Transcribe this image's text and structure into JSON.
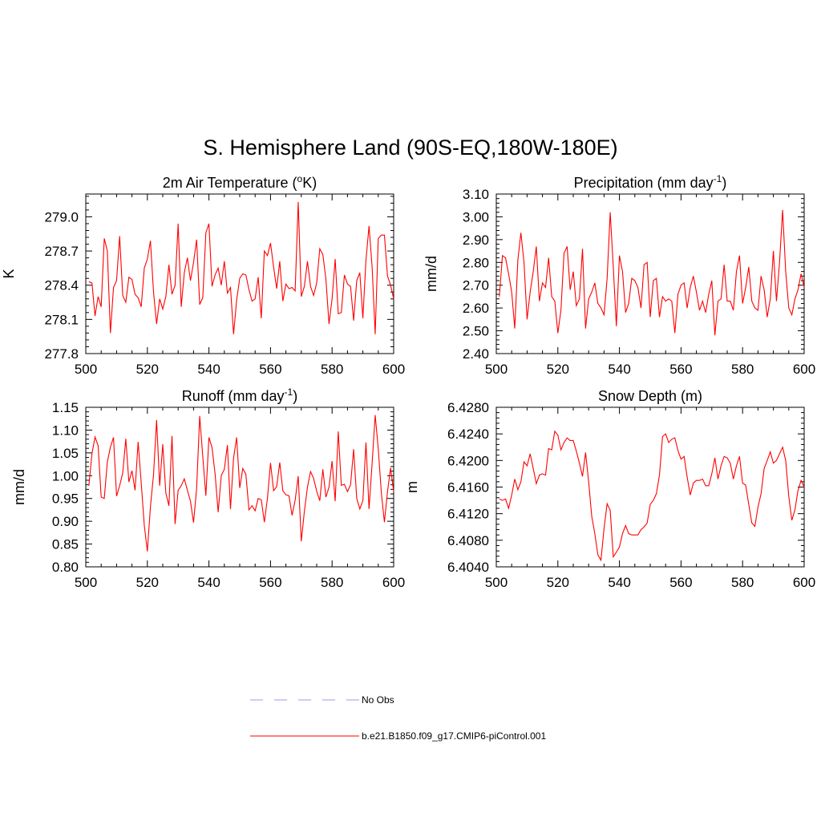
{
  "figure": {
    "title": "S. Hemisphere Land (90S-EQ,180W-180E)"
  },
  "chart_data": [
    {
      "type": "line",
      "title": "2m Air Temperature (",
      "title_sup": "o",
      "title_after": "K)",
      "xlabel": "",
      "ylabel": "K",
      "xlim": [
        500,
        600
      ],
      "ylim": [
        277.8,
        279.2
      ],
      "xticks": [
        "500",
        "520",
        "540",
        "560",
        "580",
        "600"
      ],
      "yticks": [
        "277.8",
        "278.1",
        "278.4",
        "278.7",
        "279.0"
      ],
      "ytick_values": [
        277.8,
        278.1,
        278.4,
        278.7,
        279.0
      ],
      "series": [
        {
          "name": "b.e21.B1850.f09_g17.CMIP6-piControl.001",
          "color": "#ff0000",
          "x_start": 501,
          "values": [
            278.43,
            278.42,
            278.13,
            278.3,
            278.21,
            278.81,
            278.7,
            277.98,
            278.38,
            278.44,
            278.83,
            278.31,
            278.25,
            278.47,
            278.45,
            278.32,
            278.29,
            278.21,
            278.55,
            278.63,
            278.79,
            278.34,
            278.06,
            278.28,
            278.19,
            278.3,
            278.58,
            278.32,
            278.4,
            278.94,
            278.21,
            278.51,
            278.64,
            278.44,
            278.6,
            278.8,
            278.23,
            278.29,
            278.86,
            278.94,
            278.39,
            278.49,
            278.55,
            278.4,
            278.61,
            278.33,
            278.38,
            277.97,
            278.27,
            278.46,
            278.5,
            278.49,
            278.36,
            278.26,
            278.28,
            278.47,
            278.11,
            278.7,
            278.66,
            278.77,
            278.56,
            278.37,
            278.61,
            278.26,
            278.41,
            278.37,
            278.38,
            278.35,
            279.13,
            278.3,
            278.39,
            278.61,
            278.39,
            278.31,
            278.42,
            278.72,
            278.67,
            278.45,
            278.06,
            278.28,
            278.63,
            278.15,
            278.16,
            278.49,
            278.41,
            278.39,
            278.09,
            278.44,
            278.51,
            278.11,
            278.62,
            278.92,
            278.56,
            277.97,
            278.81,
            278.84,
            278.84,
            278.48,
            278.4,
            278.28
          ]
        }
      ]
    },
    {
      "type": "line",
      "title": "Precipitation (mm day",
      "title_sup": "-1",
      "title_after": ")",
      "xlabel": "",
      "ylabel": "mm/d",
      "xlim": [
        500,
        600
      ],
      "ylim": [
        2.4,
        3.1
      ],
      "xticks": [
        "500",
        "520",
        "540",
        "560",
        "580",
        "600"
      ],
      "yticks": [
        "2.40",
        "2.50",
        "2.60",
        "2.70",
        "2.80",
        "2.90",
        "3.00",
        "3.10"
      ],
      "ytick_values": [
        2.4,
        2.5,
        2.6,
        2.7,
        2.8,
        2.9,
        3.0,
        3.1
      ],
      "series": [
        {
          "name": "b.e21.B1850.f09_g17.CMIP6-piControl.001",
          "color": "#ff0000",
          "x_start": 501,
          "values": [
            2.65,
            2.83,
            2.82,
            2.75,
            2.67,
            2.51,
            2.81,
            2.93,
            2.8,
            2.55,
            2.67,
            2.76,
            2.87,
            2.63,
            2.71,
            2.69,
            2.82,
            2.65,
            2.63,
            2.49,
            2.59,
            2.84,
            2.87,
            2.68,
            2.76,
            2.61,
            2.64,
            2.86,
            2.51,
            2.64,
            2.67,
            2.71,
            2.62,
            2.6,
            2.57,
            2.73,
            3.02,
            2.78,
            2.52,
            2.83,
            2.76,
            2.58,
            2.62,
            2.73,
            2.72,
            2.69,
            2.6,
            2.79,
            2.8,
            2.56,
            2.72,
            2.73,
            2.56,
            2.65,
            2.63,
            2.64,
            2.63,
            2.49,
            2.66,
            2.7,
            2.71,
            2.6,
            2.69,
            2.74,
            2.67,
            2.59,
            2.63,
            2.58,
            2.66,
            2.72,
            2.48,
            2.63,
            2.64,
            2.79,
            2.63,
            2.63,
            2.59,
            2.76,
            2.83,
            2.62,
            2.69,
            2.78,
            2.63,
            2.6,
            2.59,
            2.74,
            2.68,
            2.56,
            2.64,
            2.85,
            2.63,
            2.8,
            3.03,
            2.76,
            2.6,
            2.57,
            2.64,
            2.68,
            2.75,
            2.69
          ]
        }
      ]
    },
    {
      "type": "line",
      "title": "Runoff (mm day",
      "title_sup": "-1",
      "title_after": ")",
      "xlabel": "",
      "ylabel": "mm/d",
      "xlim": [
        500,
        600
      ],
      "ylim": [
        0.8,
        1.15
      ],
      "xticks": [
        "500",
        "520",
        "540",
        "560",
        "580",
        "600"
      ],
      "yticks": [
        "0.80",
        "0.85",
        "0.90",
        "0.95",
        "1.00",
        "1.05",
        "1.10",
        "1.15"
      ],
      "ytick_values": [
        0.8,
        0.85,
        0.9,
        0.95,
        1.0,
        1.05,
        1.1,
        1.15
      ],
      "series": [
        {
          "name": "b.e21.B1850.f09_g17.CMIP6-piControl.001",
          "color": "#ff0000",
          "x_start": 501,
          "values": [
            0.978,
            1.048,
            1.085,
            1.066,
            0.953,
            0.95,
            1.03,
            1.063,
            1.084,
            0.955,
            0.978,
            1.006,
            1.081,
            0.986,
            1.011,
            0.968,
            1.074,
            0.985,
            0.891,
            0.834,
            0.932,
            1.002,
            1.122,
            0.978,
            1.069,
            0.962,
            0.934,
            1.087,
            0.894,
            0.968,
            0.978,
            0.993,
            0.968,
            0.944,
            0.897,
            0.972,
            1.131,
            1.042,
            0.956,
            1.084,
            1.062,
            1.004,
            0.92,
            1.0,
            1.014,
            1.067,
            0.927,
            1.039,
            1.084,
            0.973,
            1.016,
            1.003,
            0.925,
            0.934,
            0.923,
            0.95,
            0.947,
            0.898,
            0.95,
            1.028,
            0.967,
            0.976,
            1.029,
            0.967,
            0.958,
            0.956,
            0.913,
            0.946,
            0.999,
            0.856,
            0.922,
            0.975,
            1.009,
            0.994,
            0.966,
            0.945,
            1.014,
            0.953,
            0.975,
            1.032,
            0.944,
            1.097,
            0.979,
            0.981,
            0.965,
            0.98,
            1.058,
            0.95,
            0.927,
            0.945,
            1.073,
            0.927,
            1.027,
            1.133,
            1.059,
            0.962,
            0.898,
            0.965,
            1.017,
            0.965
          ]
        }
      ]
    },
    {
      "type": "line",
      "title": "Snow Depth (m)",
      "title_sup": "",
      "title_after": "",
      "xlabel": "",
      "ylabel": "m",
      "xlim": [
        500,
        600
      ],
      "ylim": [
        6.404,
        6.428
      ],
      "xticks": [
        "500",
        "520",
        "540",
        "560",
        "580",
        "600"
      ],
      "yticks": [
        "6.4040",
        "6.4080",
        "6.4120",
        "6.4160",
        "6.4200",
        "6.4240",
        "6.4280"
      ],
      "ytick_values": [
        6.404,
        6.408,
        6.412,
        6.416,
        6.42,
        6.424,
        6.428
      ],
      "series": [
        {
          "name": "b.e21.B1850.f09_g17.CMIP6-piControl.001",
          "color": "#ff0000",
          "x_start": 501,
          "values": [
            6.4142,
            6.414,
            6.4142,
            6.4128,
            6.4148,
            6.4172,
            6.4156,
            6.4168,
            6.4198,
            6.4192,
            6.421,
            6.4188,
            6.4165,
            6.4178,
            6.418,
            6.4178,
            6.4218,
            6.4216,
            6.4244,
            6.4238,
            6.4216,
            6.4227,
            6.4234,
            6.423,
            6.423,
            6.4214,
            6.4196,
            6.4176,
            6.4212,
            6.4168,
            6.4116,
            6.409,
            6.4058,
            6.405,
            6.4098,
            6.4135,
            6.4125,
            6.4055,
            6.4062,
            6.407,
            6.409,
            6.4102,
            6.409,
            6.4088,
            6.4088,
            6.4088,
            6.4096,
            6.41,
            6.4106,
            6.4134,
            6.414,
            6.415,
            6.4178,
            6.4236,
            6.424,
            6.4227,
            6.4232,
            6.4234,
            6.4215,
            6.4202,
            6.4206,
            6.4175,
            6.4148,
            6.4166,
            6.417,
            6.417,
            6.4172,
            6.4162,
            6.4162,
            6.418,
            6.4204,
            6.4172,
            6.4192,
            6.4206,
            6.4204,
            6.4196,
            6.4172,
            6.4192,
            6.4206,
            6.4166,
            6.4163,
            6.4134,
            6.4106,
            6.4101,
            6.413,
            6.415,
            6.4188,
            6.42,
            6.4213,
            6.4196,
            6.42,
            6.421,
            6.422,
            6.42,
            6.4146,
            6.411,
            6.4126,
            6.4155,
            6.417,
            6.416
          ]
        }
      ]
    }
  ],
  "legend": {
    "entries": [
      {
        "label": "No Obs",
        "color": "#9999ff",
        "style": "dashed"
      },
      {
        "label": "b.e21.B1850.f09_g17.CMIP6-piControl.001",
        "color": "#ff0000",
        "style": "solid"
      }
    ]
  }
}
